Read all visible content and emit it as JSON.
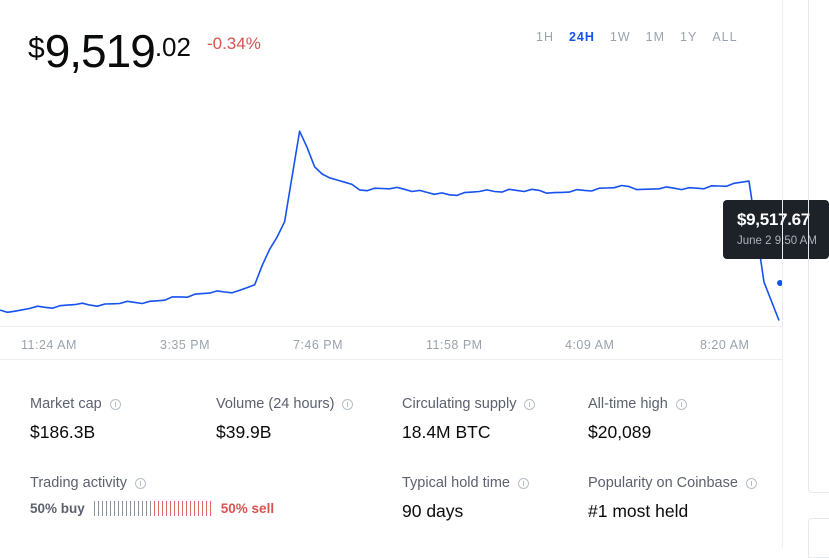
{
  "price": {
    "currency": "$",
    "main": "9,519",
    "cents": ".02",
    "change": "-0.34%"
  },
  "range_tabs": [
    "1H",
    "24H",
    "1W",
    "1M",
    "1Y",
    "ALL"
  ],
  "active_range": "24H",
  "tooltip": {
    "price": "$9,517.67",
    "date": "June 2 9:50 AM"
  },
  "chart_data": {
    "type": "line",
    "x_ticks": [
      "11:24 AM",
      "3:35 PM",
      "7:46 PM",
      "11:58 PM",
      "4:09 AM",
      "8:20 AM"
    ],
    "ylim": [
      9450,
      9880
    ],
    "color": "#1652f0",
    "series": [
      {
        "values": [
          9479,
          9477,
          9482,
          9484,
          9487,
          9489,
          9488,
          9490,
          9491,
          9493,
          9495,
          9497,
          9503,
          9508,
          9510,
          9512,
          9515,
          9525,
          9590,
          9640,
          9805,
          9740,
          9720,
          9712,
          9698,
          9701,
          9700,
          9699,
          9697,
          9690,
          9689,
          9693,
          9695,
          9695,
          9699,
          9695,
          9697,
          9693,
          9694,
          9697,
          9701,
          9702,
          9704,
          9699,
          9700,
          9701,
          9702,
          9700,
          9705,
          9710,
          9714,
          9530,
          9460
        ]
      }
    ]
  },
  "stats": {
    "market_cap": {
      "label": "Market cap",
      "value": "$186.3B"
    },
    "volume": {
      "label": "Volume (24 hours)",
      "value": "$39.9B"
    },
    "supply": {
      "label": "Circulating supply",
      "value": "18.4M BTC"
    },
    "ath": {
      "label": "All-time high",
      "value": "$20,089"
    },
    "trading": {
      "label": "Trading activity",
      "buy": "50% buy",
      "sell": "50% sell",
      "buy_fraction": 0.5
    },
    "hold": {
      "label": "Typical hold time",
      "value": "90 days"
    },
    "popularity": {
      "label": "Popularity on Coinbase",
      "value": "#1 most held"
    }
  }
}
